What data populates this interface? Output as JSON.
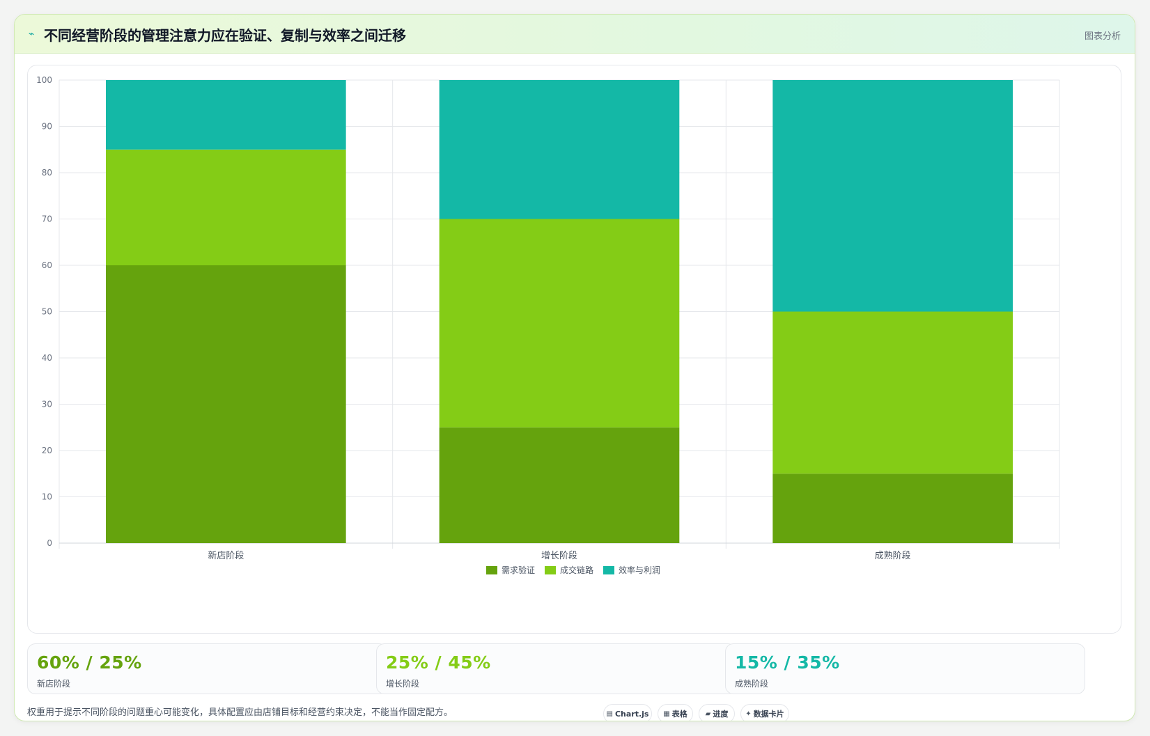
{
  "header": {
    "icon": "trend-icon",
    "title": "不同经营阶段的管理注意力应在验证、复制与效率之间迁移",
    "tag": "图表分析"
  },
  "chart_data": {
    "type": "bar",
    "stacked": true,
    "categories": [
      "新店阶段",
      "增长阶段",
      "成熟阶段"
    ],
    "series": [
      {
        "name": "需求验证",
        "color": "#65a30d",
        "values": [
          60,
          25,
          15
        ]
      },
      {
        "name": "成交链路",
        "color": "#84cc16",
        "values": [
          25,
          45,
          35
        ]
      },
      {
        "name": "效率与利润",
        "color": "#14b8a6",
        "values": [
          15,
          30,
          50
        ]
      }
    ],
    "ylim": [
      0,
      100
    ],
    "yticks": [
      "0",
      "10",
      "20",
      "30",
      "40",
      "50",
      "60",
      "70",
      "80",
      "90",
      "100"
    ],
    "grid": true,
    "legend_position": "bottom"
  },
  "stats": [
    {
      "value": "60% / 25%",
      "label": "新店阶段",
      "color": "#65a30d"
    },
    {
      "value": "25% / 45%",
      "label": "增长阶段",
      "color": "#84cc16"
    },
    {
      "value": "15% / 35%",
      "label": "成熟阶段",
      "color": "#14b8a6"
    }
  ],
  "footnote": "权重用于提示不同阶段的问题重心可能变化，具体配置应由店铺目标和经营约束决定，不能当作固定配方。",
  "chips": [
    {
      "icon": "chart-icon",
      "glyph": "▤",
      "label": "Chart.js"
    },
    {
      "icon": "table-icon",
      "glyph": "▦",
      "label": "表格"
    },
    {
      "icon": "progress-icon",
      "glyph": "▰",
      "label": "进度"
    },
    {
      "icon": "sparkle-icon",
      "glyph": "✦",
      "label": "数据卡片"
    }
  ]
}
